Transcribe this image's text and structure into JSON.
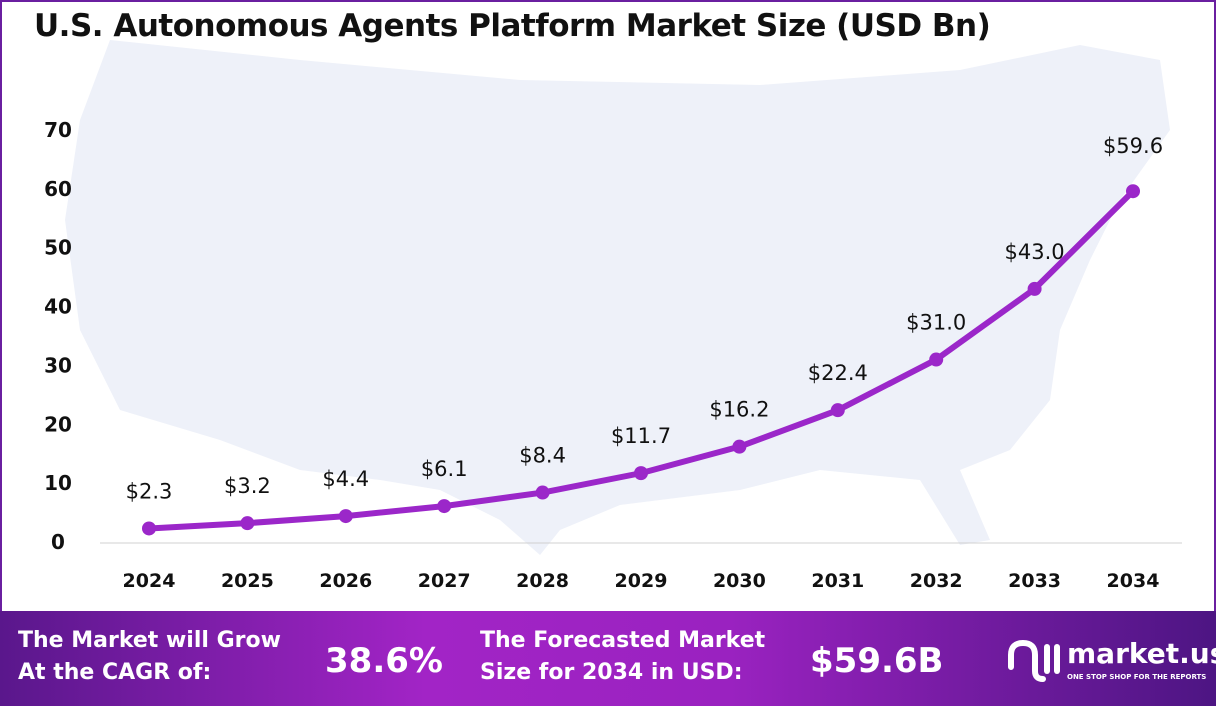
{
  "chart_data": {
    "type": "line",
    "title": "U.S. Autonomous Agents Platform Market Size (USD Bn)",
    "categories": [
      "2024",
      "2025",
      "2026",
      "2027",
      "2028",
      "2029",
      "2030",
      "2031",
      "2032",
      "2033",
      "2034"
    ],
    "values": [
      2.3,
      3.2,
      4.4,
      6.1,
      8.4,
      11.7,
      16.2,
      22.4,
      31.0,
      43.0,
      59.6
    ],
    "data_labels": [
      "$2.3",
      "$3.2",
      "$4.4",
      "$6.1",
      "$8.4",
      "$11.7",
      "$16.2",
      "$22.4",
      "$31.0",
      "$43.0",
      "$59.6"
    ],
    "ylim": [
      0,
      70
    ],
    "yticks": [
      "0",
      "10",
      "20",
      "30",
      "40",
      "50",
      "60",
      "70"
    ],
    "grid": false,
    "line_color": "#9b27c9"
  },
  "footer": {
    "cagr_label_1": "The Market will Grow",
    "cagr_label_2": "At the CAGR of:",
    "cagr_value": "38.6%",
    "forecast_label_1": "The Forecasted Market",
    "forecast_label_2": "Size for 2034 in USD:",
    "forecast_value": "$59.6B",
    "logo_name": "market.us",
    "logo_tagline": "ONE STOP SHOP FOR THE REPORTS"
  }
}
